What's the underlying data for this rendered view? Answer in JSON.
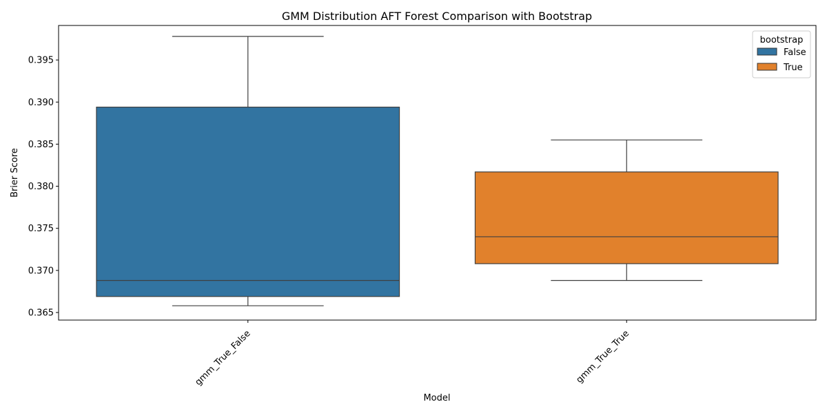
{
  "chart_data": {
    "type": "box",
    "title": "GMM Distribution AFT Forest Comparison with Bootstrap",
    "xlabel": "Model",
    "ylabel": "Brier Score",
    "ylim": [
      0.3641,
      0.3991
    ],
    "yticks": [
      0.365,
      0.37,
      0.375,
      0.38,
      0.385,
      0.39,
      0.395
    ],
    "ytick_labels": [
      "0.365",
      "0.370",
      "0.375",
      "0.380",
      "0.385",
      "0.390",
      "0.395"
    ],
    "categories": [
      "gmm_True_False",
      "gmm_True_True"
    ],
    "grid": false,
    "legend": {
      "title": "bootstrap",
      "placement": "top-right",
      "entries": [
        "False",
        "True"
      ]
    },
    "series": [
      {
        "name": "False",
        "color": "#3274a1",
        "category": "gmm_True_False",
        "whisker_low": 0.3658,
        "q1": 0.3669,
        "median": 0.3688,
        "q3": 0.3894,
        "whisker_high": 0.3978
      },
      {
        "name": "True",
        "color": "#e1812c",
        "category": "gmm_True_True",
        "whisker_low": 0.3688,
        "q1": 0.3708,
        "median": 0.374,
        "q3": 0.3817,
        "whisker_high": 0.3855
      }
    ]
  }
}
